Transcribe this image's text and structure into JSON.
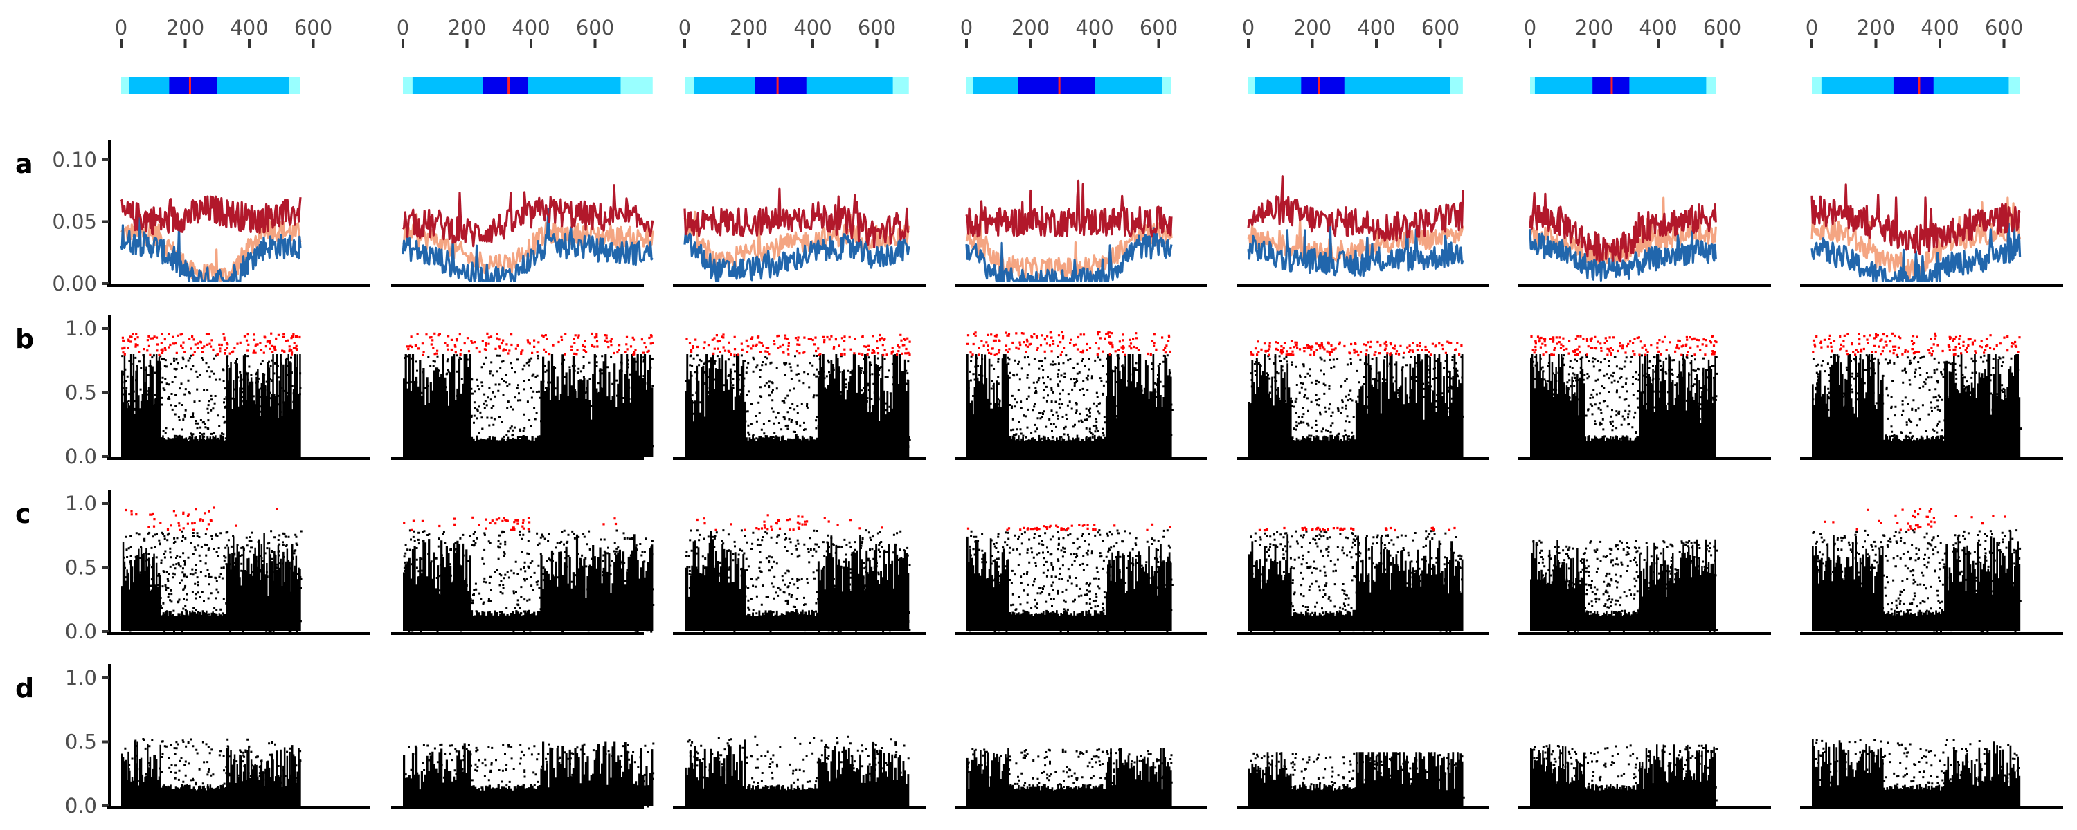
{
  "chart_data": {
    "type": "multi-panel",
    "colors": {
      "ideogram_outer": "#99ffff",
      "ideogram_arm": "#00bfff",
      "ideogram_centromere": "#0000ee",
      "ideogram_marker": "#ff2222",
      "line_high": "#b2182b",
      "line_mid": "#f4a582",
      "line_low": "#2166ac",
      "point_default": "#000000",
      "point_highlight": "#ff0000"
    },
    "chromosomes": [
      {
        "length": 560,
        "centromere": [
          150,
          300
        ],
        "marker": 215,
        "arm_start": 25,
        "arm_end": 525
      },
      {
        "length": 780,
        "centromere": [
          250,
          390
        ],
        "marker": 330,
        "arm_start": 30,
        "arm_end": 680
      },
      {
        "length": 700,
        "centromere": [
          220,
          380
        ],
        "marker": 290,
        "arm_start": 30,
        "arm_end": 650
      },
      {
        "length": 640,
        "centromere": [
          160,
          400
        ],
        "marker": 290,
        "arm_start": 20,
        "arm_end": 610
      },
      {
        "length": 670,
        "centromere": [
          165,
          300
        ],
        "marker": 220,
        "arm_start": 20,
        "arm_end": 630
      },
      {
        "length": 580,
        "centromere": [
          195,
          310
        ],
        "marker": 255,
        "arm_start": 15,
        "arm_end": 550
      },
      {
        "length": 650,
        "centromere": [
          255,
          380
        ],
        "marker": 335,
        "arm_start": 30,
        "arm_end": 615
      }
    ],
    "top_axis": {
      "ticks": [
        0,
        200,
        400,
        600
      ],
      "tick_labels": [
        "0",
        "200",
        "400",
        "600"
      ]
    },
    "rows": [
      {
        "letter": "a",
        "kind": "lines",
        "ylim": [
          0,
          0.105
        ],
        "ticks": [
          0,
          0.05,
          0.1
        ],
        "tick_labels": [
          "0.00",
          "0.05",
          "0.10"
        ],
        "series_profiles": [
          [
            [
              0.056,
              0.05,
              0.06,
              0.052,
              0.058
            ],
            [
              0.048,
              0.048,
              0.04,
              0.048,
              0.06,
              0.055,
              0.052,
              0.05
            ],
            [
              0.05,
              0.05,
              0.05,
              0.05,
              0.055,
              0.05,
              0.04,
              0.05
            ],
            [
              0.05,
              0.05,
              0.05,
              0.05,
              0.05,
              0.05
            ],
            [
              0.055,
              0.06,
              0.05,
              0.05,
              0.045,
              0.05,
              0.055
            ],
            [
              0.055,
              0.05,
              0.03,
              0.03,
              0.05,
              0.05,
              0.055
            ],
            [
              0.06,
              0.055,
              0.045,
              0.035,
              0.04,
              0.05,
              0.055
            ]
          ],
          [
            [
              0.04,
              0.04,
              0.008,
              0.006,
              0.045,
              0.04
            ],
            [
              0.04,
              0.035,
              0.018,
              0.016,
              0.04,
              0.04,
              0.038,
              0.035
            ],
            [
              0.045,
              0.015,
              0.025,
              0.03,
              0.035,
              0.04,
              0.035,
              0.04
            ],
            [
              0.04,
              0.015,
              0.012,
              0.012,
              0.014,
              0.04,
              0.04
            ],
            [
              0.04,
              0.03,
              0.028,
              0.025,
              0.035,
              0.035,
              0.04
            ],
            [
              0.04,
              0.035,
              0.022,
              0.025,
              0.035,
              0.04,
              0.04
            ],
            [
              0.045,
              0.04,
              0.018,
              0.01,
              0.035,
              0.04,
              0.045
            ]
          ],
          [
            [
              0.035,
              0.03,
              0.004,
              0.003,
              0.03,
              0.03
            ],
            [
              0.03,
              0.02,
              0.006,
              0.005,
              0.03,
              0.03,
              0.025,
              0.025
            ],
            [
              0.035,
              0.01,
              0.012,
              0.015,
              0.025,
              0.03,
              0.02,
              0.03
            ],
            [
              0.03,
              0.003,
              0.002,
              0.002,
              0.003,
              0.03,
              0.03
            ],
            [
              0.03,
              0.02,
              0.018,
              0.015,
              0.02,
              0.02,
              0.025
            ],
            [
              0.035,
              0.025,
              0.012,
              0.012,
              0.02,
              0.025,
              0.025
            ],
            [
              0.03,
              0.02,
              0.005,
              0.004,
              0.015,
              0.02,
              0.03
            ]
          ]
        ]
      },
      {
        "letter": "b",
        "kind": "points",
        "ylim": [
          0,
          1.0
        ],
        "ticks": [
          0,
          0.5,
          1.0
        ],
        "tick_labels": [
          "0.0",
          "0.5",
          "1.0"
        ],
        "highlight_threshold": 0.8,
        "max_values": [
          0.97,
          0.97,
          0.96,
          0.98,
          0.91,
          0.95,
          0.97
        ]
      },
      {
        "letter": "c",
        "kind": "points",
        "ylim": [
          0,
          1.0
        ],
        "ticks": [
          0,
          0.5,
          1.0
        ],
        "tick_labels": [
          "0.0",
          "0.5",
          "1.0"
        ],
        "highlight_threshold": 0.8,
        "max_values": [
          0.98,
          0.9,
          0.92,
          0.85,
          0.82,
          0.72,
          0.97
        ]
      },
      {
        "letter": "d",
        "kind": "points",
        "ylim": [
          0,
          1.0
        ],
        "ticks": [
          0,
          0.5,
          1.0
        ],
        "tick_labels": [
          "0.0",
          "0.5",
          "1.0"
        ],
        "highlight_threshold": null,
        "max_values": [
          0.53,
          0.5,
          0.55,
          0.45,
          0.42,
          0.48,
          0.53
        ]
      }
    ]
  }
}
